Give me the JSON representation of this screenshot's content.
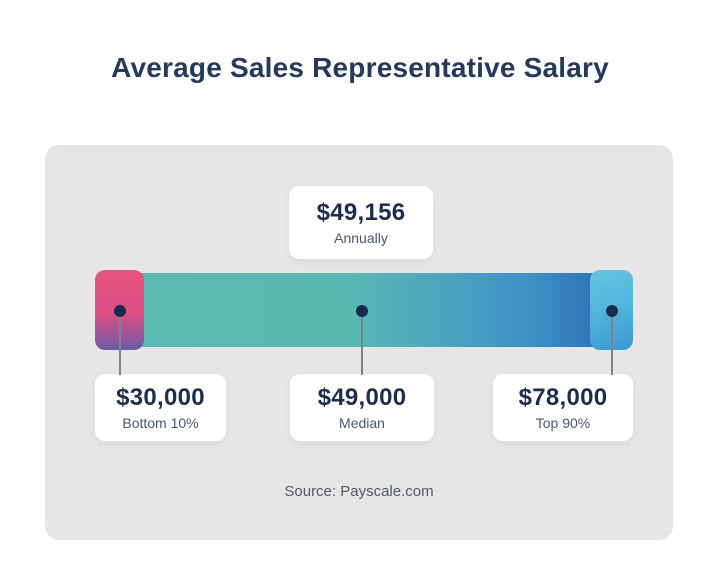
{
  "header": {
    "title": "Average Sales Representative Salary"
  },
  "annual_card": {
    "value": "$49,156",
    "label": "Annually"
  },
  "salary_cards": [
    {
      "value": "$30,000",
      "label": "Bottom 10%"
    },
    {
      "value": "$49,000",
      "label": "Median"
    },
    {
      "value": "$78,000",
      "label": "Top 90%"
    }
  ],
  "footer": {
    "source": "Source: Payscale.com"
  },
  "theme": {
    "panel_bg": "#E6E6E7",
    "card_bg": "#FFFFFF",
    "title_color": "#27395B",
    "value_color": "#1E2C4E",
    "label_color": "#47566F",
    "source_color": "#53585F",
    "dot_color": "#1B2A4C",
    "connector_color": "#7A828F",
    "bar_gradient_start": "#5CBBB2",
    "bar_gradient_end": "#2A6CB4",
    "marker_low_top": "#E75480",
    "marker_low_bottom": "#6A5BA8",
    "marker_high_top": "#66C6E1",
    "marker_high_bottom": "#3B95D0"
  },
  "chart_data": {
    "type": "bar",
    "title": "Average Sales Representative Salary",
    "orientation": "horizontal-range",
    "average": {
      "value": 49156,
      "display": "$49,156",
      "period": "Annually"
    },
    "categories": [
      "Bottom 10%",
      "Median",
      "Top 90%"
    ],
    "values": [
      30000,
      49000,
      78000
    ],
    "points": [
      {
        "label": "Bottom 10%",
        "value": 30000,
        "display": "$30,000"
      },
      {
        "label": "Median",
        "value": 49000,
        "display": "$49,000"
      },
      {
        "label": "Top 90%",
        "value": 78000,
        "display": "$78,000"
      }
    ],
    "range": [
      30000,
      78000
    ],
    "source": "Source: Payscale.com"
  }
}
